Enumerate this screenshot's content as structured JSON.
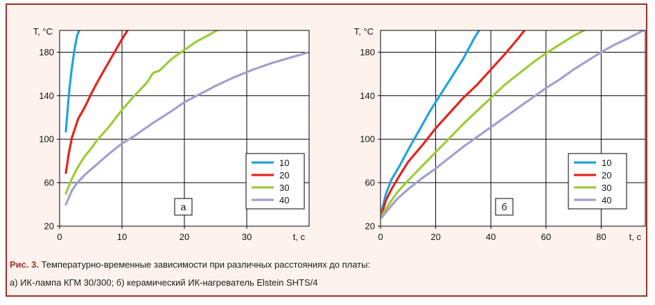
{
  "caption": {
    "figure_label": "Рис. 3.",
    "line1": " Температурно-временные зависимости при различных расстояниях до платы:",
    "line2": "а) ИК-лампа КГМ 30/300; б) керамический ИК-нагреватель Elstein SHTS/4"
  },
  "colors": {
    "frame": "#9a2f2b",
    "background": "#fdf3ec",
    "10": "#1fa3dc",
    "20": "#e3241e",
    "30": "#9ccb37",
    "40": "#a29fcf"
  },
  "chart_data": [
    {
      "type": "line",
      "panel_label": "а",
      "ylabel": "T, °C",
      "xlabel": "t, c",
      "xlim": [
        0,
        40
      ],
      "ylim": [
        20,
        200
      ],
      "xticks": [
        0,
        10,
        20,
        30
      ],
      "yticks": [
        20,
        60,
        100,
        140,
        180
      ],
      "grid": true,
      "legend_position": "bottom-right",
      "series": [
        {
          "name": "10",
          "color": "#1fa3dc",
          "x": [
            1.0,
            1.3,
            1.6,
            2.0,
            2.4,
            2.8,
            3.2
          ],
          "y": [
            107,
            128,
            148,
            167,
            183,
            195,
            201
          ]
        },
        {
          "name": "20",
          "color": "#e3241e",
          "x": [
            1,
            1.5,
            2,
            3,
            4,
            5,
            6,
            7,
            8,
            9,
            10,
            11
          ],
          "y": [
            69,
            88,
            102,
            119,
            129,
            141,
            152,
            162,
            172,
            182,
            192,
            201
          ]
        },
        {
          "name": "30",
          "color": "#9ccb37",
          "x": [
            1,
            2,
            3,
            4,
            5,
            6,
            8,
            10,
            12,
            14,
            15,
            16,
            18,
            20,
            22,
            24,
            25.5
          ],
          "y": [
            50,
            64,
            75,
            84,
            91,
            99,
            112,
            127,
            140,
            152,
            161,
            163,
            174,
            182,
            190,
            196,
            201
          ]
        },
        {
          "name": "40",
          "color": "#a29fcf",
          "x": [
            1,
            2,
            3,
            4,
            5,
            6,
            8,
            10,
            12,
            15,
            18,
            20,
            22,
            25,
            28,
            31,
            34,
            37,
            40
          ],
          "y": [
            40,
            53,
            61,
            67,
            72,
            77,
            87,
            96,
            103,
            115,
            126,
            134,
            140,
            149,
            157,
            164,
            170,
            175,
            180
          ]
        }
      ]
    },
    {
      "type": "line",
      "panel_label": "б",
      "ylabel": "T, °C",
      "xlabel": "t, c",
      "xlim": [
        0,
        96
      ],
      "ylim": [
        20,
        200
      ],
      "xticks": [
        0,
        20,
        40,
        60,
        80
      ],
      "yticks": [
        20,
        60,
        100,
        140,
        180
      ],
      "grid": true,
      "legend_position": "bottom-right",
      "series": [
        {
          "name": "10",
          "color": "#1fa3dc",
          "x": [
            0.5,
            2,
            4,
            7,
            10,
            14,
            18,
            22,
            26,
            30,
            34,
            36
          ],
          "y": [
            35,
            50,
            63,
            76,
            90,
            108,
            126,
            142,
            158,
            174,
            193,
            201
          ]
        },
        {
          "name": "20",
          "color": "#e3241e",
          "x": [
            0.5,
            2,
            4,
            7,
            10,
            15,
            20,
            25,
            30,
            35,
            40,
            45,
            50,
            52.5
          ],
          "y": [
            32,
            44,
            54,
            67,
            79,
            94,
            110,
            124,
            138,
            150,
            164,
            178,
            193,
            201
          ]
        },
        {
          "name": "30",
          "color": "#9ccb37",
          "x": [
            0.5,
            3,
            6,
            10,
            15,
            20,
            25,
            30,
            35,
            40,
            45,
            50,
            55,
            60,
            65,
            70,
            74.5
          ],
          "y": [
            30,
            40,
            51,
            62,
            75,
            88,
            101,
            114,
            126,
            138,
            150,
            160,
            170,
            179,
            187,
            195,
            201
          ]
        },
        {
          "name": "40",
          "color": "#a29fcf",
          "x": [
            0.5,
            3,
            6,
            10,
            15,
            20,
            25,
            30,
            35,
            40,
            45,
            50,
            55,
            60,
            65,
            70,
            75,
            80,
            85,
            90,
            96
          ],
          "y": [
            28,
            36,
            45,
            54,
            64,
            73,
            83,
            93,
            102,
            111,
            120,
            129,
            138,
            147,
            155,
            164,
            172,
            180,
            187,
            193,
            201
          ]
        }
      ]
    }
  ]
}
